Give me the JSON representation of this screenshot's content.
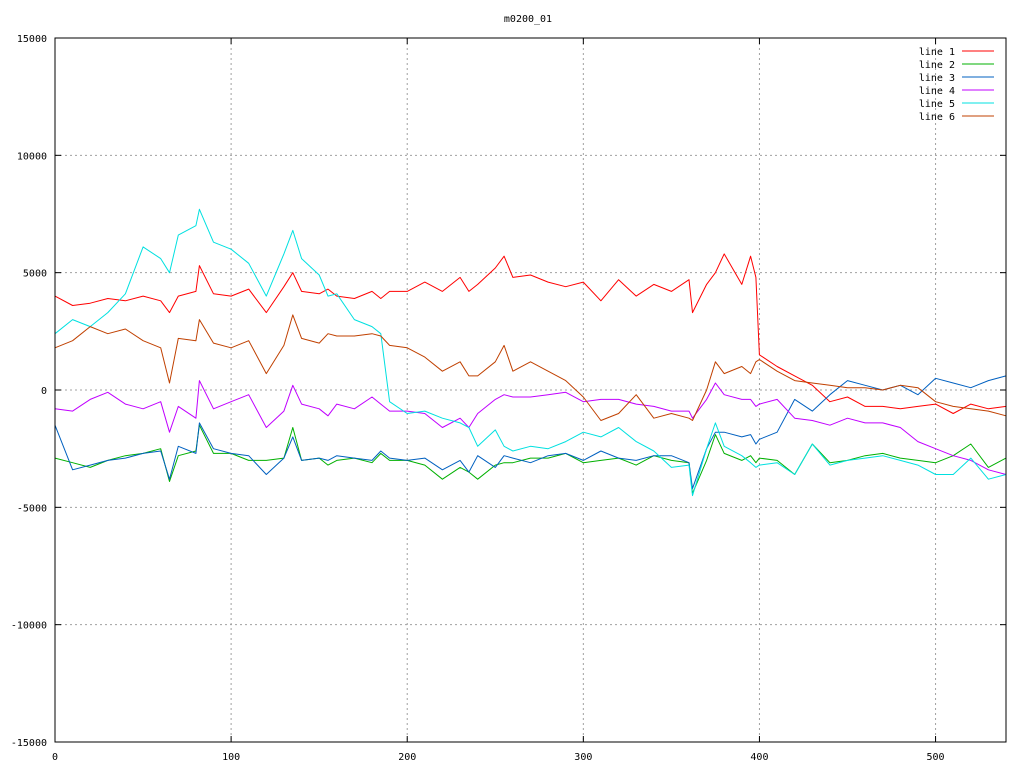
{
  "chart_data": {
    "type": "line",
    "title": "m0200_01",
    "xlabel": "",
    "ylabel": "",
    "xlim": [
      0,
      540
    ],
    "ylim": [
      -15000,
      15000
    ],
    "xticks": [
      0,
      100,
      200,
      300,
      400,
      500
    ],
    "yticks": [
      -15000,
      -10000,
      -5000,
      0,
      5000,
      10000,
      15000
    ],
    "grid": true,
    "legend_position": "top-right",
    "x": [
      0,
      10,
      20,
      30,
      40,
      50,
      60,
      65,
      70,
      80,
      82,
      90,
      100,
      110,
      120,
      130,
      135,
      140,
      150,
      155,
      160,
      170,
      180,
      185,
      190,
      200,
      210,
      220,
      230,
      235,
      240,
      250,
      255,
      260,
      270,
      280,
      290,
      300,
      310,
      320,
      330,
      340,
      350,
      360,
      362,
      370,
      375,
      380,
      390,
      395,
      398,
      400,
      410,
      420,
      430,
      440,
      450,
      460,
      470,
      480,
      490,
      500,
      510,
      520,
      530,
      540
    ],
    "series": [
      {
        "name": "line 1",
        "color": "#ff0000",
        "values": [
          4000,
          3600,
          3700,
          3900,
          3800,
          4000,
          3800,
          3300,
          4000,
          4200,
          5300,
          4100,
          4000,
          4300,
          3300,
          4400,
          5000,
          4200,
          4100,
          4300,
          4000,
          3900,
          4200,
          3900,
          4200,
          4200,
          4600,
          4200,
          4800,
          4200,
          4500,
          5200,
          5700,
          4800,
          4900,
          4600,
          4400,
          4600,
          3800,
          4700,
          4000,
          4500,
          4200,
          4700,
          3300,
          4500,
          5000,
          5800,
          4500,
          5700,
          4800,
          1500,
          1000,
          600,
          200,
          -500,
          -300,
          -700,
          -700,
          -800,
          -700,
          -600,
          -1000,
          -600,
          -800,
          -700
        ]
      },
      {
        "name": "line 2",
        "color": "#00b000",
        "values": [
          -2900,
          -3100,
          -3300,
          -3000,
          -2800,
          -2700,
          -2500,
          -3900,
          -2800,
          -2600,
          -1500,
          -2700,
          -2700,
          -3000,
          -3000,
          -2900,
          -1600,
          -3000,
          -2900,
          -3200,
          -3000,
          -2900,
          -3100,
          -2700,
          -3000,
          -3000,
          -3200,
          -3800,
          -3300,
          -3500,
          -3800,
          -3200,
          -3100,
          -3100,
          -2900,
          -2900,
          -2700,
          -3100,
          -3000,
          -2900,
          -3200,
          -2800,
          -3000,
          -3100,
          -4400,
          -3000,
          -1900,
          -2700,
          -3000,
          -2800,
          -3100,
          -2900,
          -3000,
          -3600,
          -2300,
          -3100,
          -3000,
          -2800,
          -2700,
          -2900,
          -3000,
          -3100,
          -2800,
          -2300,
          -3300,
          -2900
        ]
      },
      {
        "name": "line 3",
        "color": "#0060c0",
        "values": [
          -1500,
          -3400,
          -3200,
          -3000,
          -2900,
          -2700,
          -2600,
          -3800,
          -2400,
          -2700,
          -1400,
          -2500,
          -2700,
          -2800,
          -3600,
          -2900,
          -2000,
          -3000,
          -2900,
          -3000,
          -2800,
          -2900,
          -3000,
          -2600,
          -2900,
          -3000,
          -2900,
          -3400,
          -3000,
          -3500,
          -2800,
          -3300,
          -2800,
          -2900,
          -3100,
          -2800,
          -2700,
          -3000,
          -2600,
          -2900,
          -3000,
          -2800,
          -2800,
          -3100,
          -4200,
          -2500,
          -1800,
          -1800,
          -2000,
          -1900,
          -2300,
          -2100,
          -1800,
          -400,
          -900,
          -200,
          400,
          200,
          0,
          200,
          -200,
          500,
          300,
          100,
          400,
          600
        ]
      },
      {
        "name": "line 4",
        "color": "#c000ff",
        "values": [
          -800,
          -900,
          -400,
          -100,
          -600,
          -800,
          -500,
          -1800,
          -700,
          -1200,
          400,
          -800,
          -500,
          -200,
          -1600,
          -900,
          200,
          -600,
          -800,
          -1100,
          -600,
          -800,
          -300,
          -600,
          -900,
          -900,
          -1000,
          -1600,
          -1200,
          -1600,
          -1000,
          -400,
          -200,
          -300,
          -300,
          -200,
          -100,
          -500,
          -400,
          -400,
          -600,
          -700,
          -900,
          -900,
          -1200,
          -400,
          300,
          -200,
          -400,
          -400,
          -700,
          -600,
          -400,
          -1200,
          -1300,
          -1500,
          -1200,
          -1400,
          -1400,
          -1600,
          -2200,
          -2500,
          -2800,
          -3000,
          -3400,
          -3600
        ]
      },
      {
        "name": "line 5",
        "color": "#00e0e0",
        "values": [
          2400,
          3000,
          2700,
          3300,
          4100,
          6100,
          5600,
          5000,
          6600,
          7000,
          7700,
          6300,
          6000,
          5400,
          4000,
          5800,
          6800,
          5600,
          4900,
          4000,
          4100,
          3000,
          2700,
          2400,
          -500,
          -1000,
          -900,
          -1200,
          -1400,
          -1600,
          -2400,
          -1700,
          -2400,
          -2600,
          -2400,
          -2500,
          -2200,
          -1800,
          -2000,
          -1600,
          -2200,
          -2600,
          -3300,
          -3200,
          -4500,
          -2500,
          -1400,
          -2400,
          -2800,
          -3100,
          -3300,
          -3200,
          -3100,
          -3600,
          -2300,
          -3200,
          -3000,
          -2900,
          -2800,
          -3000,
          -3200,
          -3600,
          -3600,
          -2900,
          -3800,
          -3600
        ]
      },
      {
        "name": "line 6",
        "color": "#c04000",
        "values": [
          1800,
          2100,
          2700,
          2400,
          2600,
          2100,
          1800,
          300,
          2200,
          2100,
          3000,
          2000,
          1800,
          2100,
          700,
          1900,
          3200,
          2200,
          2000,
          2400,
          2300,
          2300,
          2400,
          2300,
          1900,
          1800,
          1400,
          800,
          1200,
          600,
          600,
          1200,
          1900,
          800,
          1200,
          800,
          400,
          -300,
          -1300,
          -1000,
          -200,
          -1200,
          -1000,
          -1200,
          -1300,
          0,
          1200,
          700,
          1000,
          700,
          1200,
          1300,
          800,
          400,
          300,
          200,
          100,
          100,
          0,
          200,
          100,
          -500,
          -700,
          -800,
          -900,
          -1100
        ]
      }
    ]
  }
}
